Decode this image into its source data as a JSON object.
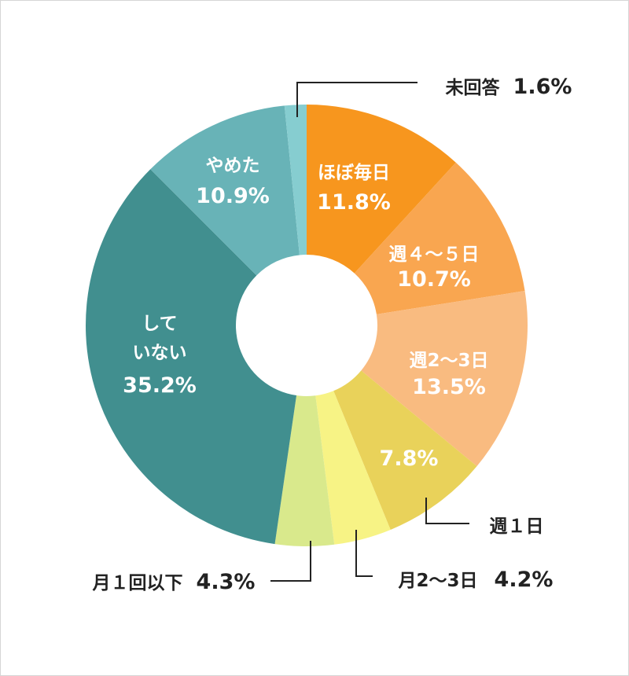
{
  "chart_data": {
    "type": "pie",
    "donut": true,
    "unit": "%",
    "slices": [
      {
        "label": "ほぼ毎日",
        "value": 11.8,
        "value_text": "11.8%",
        "color": "#f7961e"
      },
      {
        "label": "週４～５日",
        "value": 10.7,
        "value_text": "10.7%",
        "color": "#f9a650"
      },
      {
        "label": "週2～3日",
        "value": 13.5,
        "value_text": "13.5%",
        "color": "#f9bb80"
      },
      {
        "label": "週１日",
        "value": 7.8,
        "value_text": "7.8%",
        "color": "#e9d25a"
      },
      {
        "label": "月2～3日",
        "value": 4.2,
        "value_text": "4.2%",
        "color": "#f7f385"
      },
      {
        "label": "月１回以下",
        "value": 4.3,
        "value_text": "4.3%",
        "color": "#d9e98c"
      },
      {
        "label": "して\nいない",
        "value": 35.2,
        "value_text": "35.2%",
        "color": "#418f8f"
      },
      {
        "label": "やめた",
        "value": 10.9,
        "value_text": "10.9%",
        "color": "#68b3b7"
      },
      {
        "label": "未回答",
        "value": 1.6,
        "value_text": "1.6%",
        "color": "#86cdd0"
      }
    ]
  }
}
